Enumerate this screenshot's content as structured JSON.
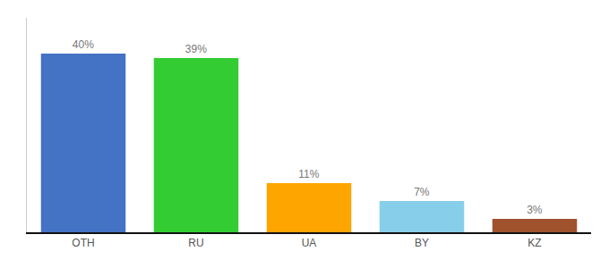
{
  "chart_data": {
    "type": "bar",
    "categories": [
      "OTH",
      "RU",
      "UA",
      "BY",
      "KZ"
    ],
    "values": [
      40,
      39,
      11,
      7,
      3
    ],
    "value_labels": [
      "40%",
      "39%",
      "11%",
      "7%",
      "3%"
    ],
    "data_labels": true,
    "colors": [
      "#4472C4",
      "#33CC33",
      "#FFA500",
      "#87CEEB",
      "#A0522D"
    ],
    "ylim": [
      0,
      48
    ],
    "grid": false,
    "tick_labels": "x"
  }
}
